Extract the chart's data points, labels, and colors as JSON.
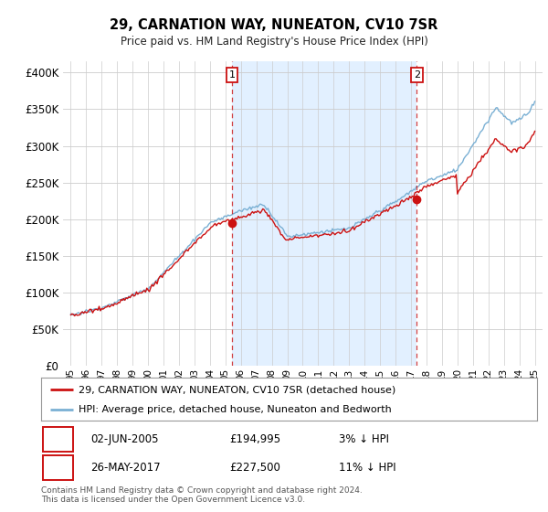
{
  "title": "29, CARNATION WAY, NUNEATON, CV10 7SR",
  "subtitle": "Price paid vs. HM Land Registry's House Price Index (HPI)",
  "ytick_values": [
    0,
    50000,
    100000,
    150000,
    200000,
    250000,
    300000,
    350000,
    400000
  ],
  "ylim": [
    0,
    415000
  ],
  "xlim_start": 1994.5,
  "xlim_end": 2025.5,
  "hpi_color": "#7ab0d4",
  "price_color": "#cc1111",
  "shade_color": "#ddeeff",
  "marker1_x": 2005.42,
  "marker1_y": 194995,
  "marker2_x": 2017.38,
  "marker2_y": 227500,
  "legend_label1": "29, CARNATION WAY, NUNEATON, CV10 7SR (detached house)",
  "legend_label2": "HPI: Average price, detached house, Nuneaton and Bedworth",
  "table_row1": [
    "1",
    "02-JUN-2005",
    "£194,995",
    "3% ↓ HPI"
  ],
  "table_row2": [
    "2",
    "26-MAY-2017",
    "£227,500",
    "11% ↓ HPI"
  ],
  "footer": "Contains HM Land Registry data © Crown copyright and database right 2024.\nThis data is licensed under the Open Government Licence v3.0.",
  "background_color": "#ffffff",
  "grid_color": "#cccccc"
}
